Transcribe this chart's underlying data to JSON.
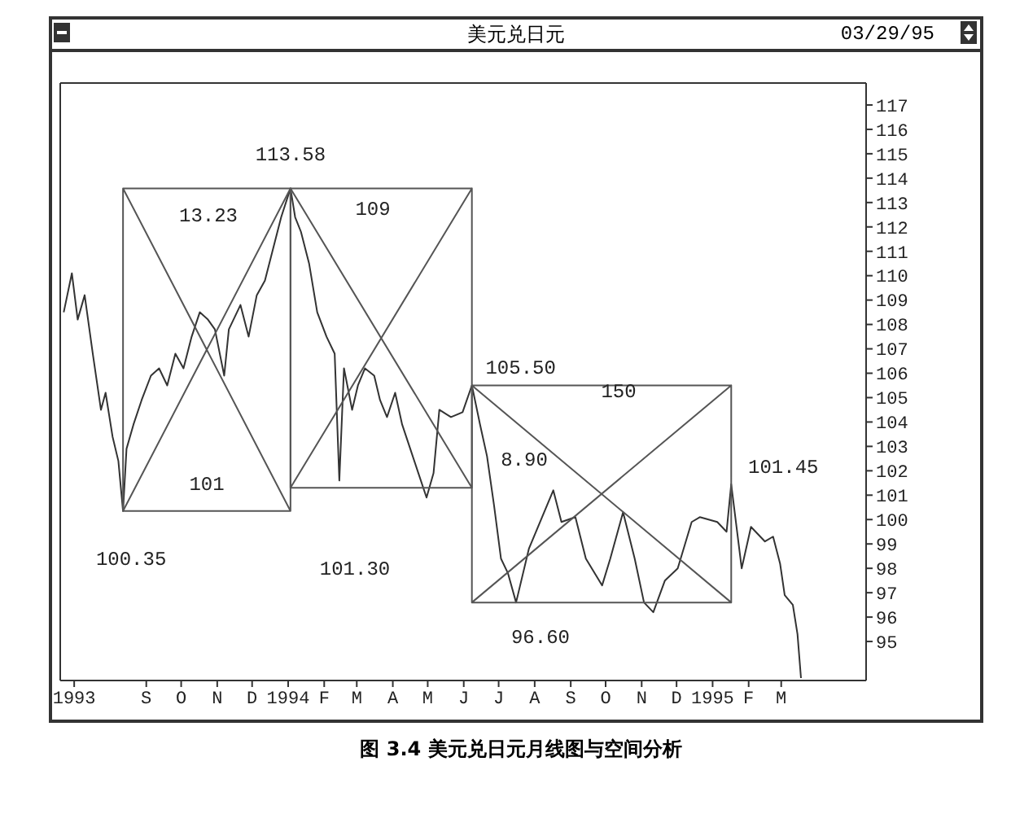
{
  "chart_data": {
    "type": "line",
    "title": "美元兑日元",
    "subtitle": "03/29/95",
    "marker": "none",
    "xlim": [
      "1993-06-19",
      "1995-05-13"
    ],
    "ylim": [
      93.4,
      117.9
    ],
    "xticks": [
      {
        "value": "1993-07",
        "label": "1993"
      },
      {
        "value": "1993-09",
        "label": "S"
      },
      {
        "value": "1993-10",
        "label": "O"
      },
      {
        "value": "1993-11",
        "label": "N"
      },
      {
        "value": "1993-12",
        "label": "D"
      },
      {
        "value": "1994-01",
        "label": "1994"
      },
      {
        "value": "1994-02",
        "label": "F"
      },
      {
        "value": "1994-03",
        "label": "M"
      },
      {
        "value": "1994-04",
        "label": "A"
      },
      {
        "value": "1994-05",
        "label": "M"
      },
      {
        "value": "1994-06",
        "label": "J"
      },
      {
        "value": "1994-07",
        "label": "J"
      },
      {
        "value": "1994-08",
        "label": "A"
      },
      {
        "value": "1994-09",
        "label": "S"
      },
      {
        "value": "1994-10",
        "label": "O"
      },
      {
        "value": "1994-11",
        "label": "N"
      },
      {
        "value": "1994-12",
        "label": "D"
      },
      {
        "value": "1995-01",
        "label": "1995"
      },
      {
        "value": "1995-02",
        "label": "F"
      },
      {
        "value": "1995-03",
        "label": "M"
      }
    ],
    "yticks": [
      95,
      96,
      97,
      98,
      99,
      100,
      101,
      102,
      103,
      104,
      105,
      106,
      107,
      108,
      109,
      110,
      111,
      112,
      113,
      114,
      115,
      116,
      117
    ],
    "series": [
      {
        "color": "#333333",
        "x": [
          "1993-06-22",
          "1993-06-29",
          "1993-07-04",
          "1993-07-10",
          "1993-07-17",
          "1993-07-24",
          "1993-07-28",
          "1993-08-03",
          "1993-08-08",
          "1993-08-12",
          "1993-08-15",
          "1993-08-21",
          "1993-08-28",
          "1993-09-05",
          "1993-09-12",
          "1993-09-19",
          "1993-09-26",
          "1993-10-03",
          "1993-10-10",
          "1993-10-17",
          "1993-10-24",
          "1993-10-30",
          "1993-11-07",
          "1993-11-11",
          "1993-11-21",
          "1993-11-28",
          "1993-12-05",
          "1993-12-12",
          "1993-12-19",
          "1993-12-26",
          "1994-01-03",
          "1994-01-07",
          "1994-01-12",
          "1994-01-19",
          "1994-01-26",
          "1994-02-03",
          "1994-02-10",
          "1994-02-14",
          "1994-02-18",
          "1994-02-25",
          "1994-03-02",
          "1994-03-08",
          "1994-03-16",
          "1994-03-21",
          "1994-03-27",
          "1994-04-03",
          "1994-04-09",
          "1994-04-16",
          "1994-04-23",
          "1994-04-30",
          "1994-05-06",
          "1994-05-11",
          "1994-05-21",
          "1994-05-31",
          "1994-06-08",
          "1994-06-15",
          "1994-06-21",
          "1994-06-27",
          "1994-07-03",
          "1994-07-09",
          "1994-07-16",
          "1994-07-27",
          "1994-08-17",
          "1994-08-24",
          "1994-09-05",
          "1994-09-14",
          "1994-09-28",
          "1994-10-05",
          "1994-10-16",
          "1994-10-26",
          "1994-11-03",
          "1994-11-11",
          "1994-11-21",
          "1994-12-02",
          "1994-12-14",
          "1994-12-21",
          "1995-01-05",
          "1995-01-13",
          "1995-01-17",
          "1995-01-26",
          "1995-02-03",
          "1995-02-15",
          "1995-02-22",
          "1995-02-28",
          "1995-03-04",
          "1995-03-11",
          "1995-03-15",
          "1995-03-18"
        ],
        "values": [
          108.5,
          110.1,
          108.2,
          109.2,
          106.8,
          104.5,
          105.2,
          103.4,
          102.4,
          100.35,
          102.9,
          103.9,
          104.9,
          105.9,
          106.2,
          105.5,
          106.8,
          106.2,
          107.5,
          108.5,
          108.2,
          107.8,
          105.9,
          107.8,
          108.8,
          107.5,
          109.2,
          109.8,
          111.1,
          112.4,
          113.58,
          112.4,
          111.8,
          110.5,
          108.5,
          107.5,
          106.8,
          101.6,
          106.2,
          104.5,
          105.5,
          106.2,
          105.9,
          104.9,
          104.2,
          105.2,
          103.9,
          102.9,
          101.9,
          100.9,
          101.9,
          104.5,
          104.2,
          104.4,
          105.5,
          103.9,
          102.6,
          100.6,
          98.4,
          97.8,
          96.6,
          98.8,
          101.2,
          99.9,
          100.1,
          98.4,
          97.3,
          98.4,
          100.3,
          98.4,
          96.6,
          96.2,
          97.5,
          98,
          99.9,
          100.1,
          99.9,
          99.5,
          101.45,
          98,
          99.7,
          99.1,
          99.3,
          98.2,
          96.9,
          96.5,
          95.3,
          93.5
        ]
      },
      {
        "color": "#555555",
        "x": [
          "1993-08-12",
          "1993-08-12",
          "1994-01-03",
          "1994-01-03",
          "1993-08-12",
          "1994-01-03",
          "1994-01-03",
          "1993-08-12"
        ],
        "values": [
          100.35,
          113.58,
          113.58,
          100.35,
          100.35,
          113.58,
          100.35,
          113.58
        ]
      },
      {
        "color": "#555555",
        "x": [
          "1994-01-03",
          "1994-01-03",
          "1994-06-08",
          "1994-06-08",
          "1994-01-03",
          "1994-06-08",
          "1994-06-08",
          "1994-01-03"
        ],
        "values": [
          101.3,
          113.58,
          113.58,
          101.3,
          101.3,
          113.58,
          101.3,
          113.58
        ]
      },
      {
        "color": "#555555",
        "x": [
          "1994-06-08",
          "1994-06-08",
          "1995-01-17",
          "1995-01-17",
          "1994-06-08",
          "1995-01-17",
          "1995-01-17",
          "1994-06-08"
        ],
        "values": [
          96.6,
          105.5,
          105.5,
          96.6,
          96.6,
          105.5,
          96.6,
          105.5
        ]
      }
    ],
    "annotations": [
      {
        "text": "113.58",
        "x": "1994-01-03",
        "y": 113.58
      },
      {
        "text": "100.35",
        "x": "1993-08-12",
        "y": 100.35
      },
      "101.30",
      {
        "text": "105.50",
        "x": "1994-06-08",
        "y": 105.5
      },
      {
        "text": "96.60",
        "x": "1994-07-16",
        "y": 96.6
      },
      {
        "text": "101.45",
        "x": "1995-01-17",
        "y": 101.45
      },
      "13.23",
      "101",
      "109",
      "150",
      "8.90",
      "图 3.4  美元兑日元月线图与空间分析"
    ]
  }
}
